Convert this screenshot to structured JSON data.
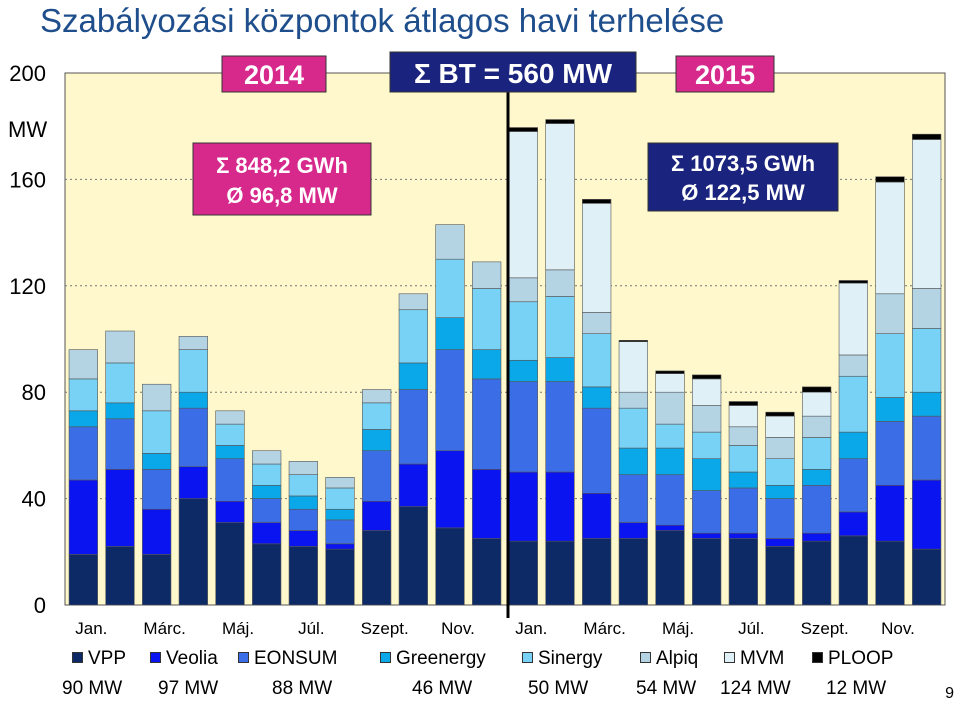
{
  "title": "Szabályozási központok átlagos havi terhelése",
  "page_number": "9",
  "boxes": {
    "year_2014": "2014",
    "bt_total": "Σ BT = 560 MW",
    "year_2015": "2015",
    "sum_2014_line1": "Σ 848,2 GWh",
    "sum_2014_line2": "Ø 96,8 MW",
    "sum_2015_line1": "Σ 1073,5 GWh",
    "sum_2015_line2": "Ø 122,5 MW"
  },
  "colors": {
    "VPP": "#0d2a66",
    "Veolia": "#0a14f0",
    "EONSUM": "#3b6ee6",
    "Greenergy": "#0aa8e8",
    "Sinergy": "#78d2f5",
    "Alpiq": "#b4d4e4",
    "MVM": "#dff1f7",
    "PLOOP": "#000000",
    "plot_bg": "#fff8cc",
    "box_magenta": "#d7288c",
    "box_navy": "#1a237e",
    "text_box_fill": "#ffffff"
  },
  "legend": [
    {
      "name": "VPP",
      "value": "90 MW"
    },
    {
      "name": "Veolia",
      "value": "97 MW"
    },
    {
      "name": "EONSUM",
      "value": "88 MW"
    },
    {
      "name": "Greenergy",
      "value": "46 MW"
    },
    {
      "name": "Sinergy",
      "value": "50 MW"
    },
    {
      "name": "Alpiq",
      "value": "54 MW"
    },
    {
      "name": "MVM",
      "value": "124 MW"
    },
    {
      "name": "PLOOP",
      "value": "12 MW"
    }
  ],
  "chart_data": {
    "type": "bar",
    "stacked": true,
    "title": "Szabályozási központok átlagos havi terhelése",
    "ylabel": "MW",
    "ylim": [
      0,
      200
    ],
    "yticks": [
      0,
      40,
      80,
      120,
      160,
      200
    ],
    "grid": true,
    "x_tick_labels": [
      "Jan.",
      "Márc.",
      "Máj.",
      "Júl.",
      "Szept.",
      "Nov.",
      "Jan.",
      "Márc.",
      "Máj.",
      "Júl.",
      "Szept.",
      "Nov."
    ],
    "categories": [
      "2014-01",
      "2014-02",
      "2014-03",
      "2014-04",
      "2014-05",
      "2014-06",
      "2014-07",
      "2014-08",
      "2014-09",
      "2014-10",
      "2014-11",
      "2014-12",
      "2015-01",
      "2015-02",
      "2015-03",
      "2015-04",
      "2015-05",
      "2015-06",
      "2015-07",
      "2015-08",
      "2015-09",
      "2015-10",
      "2015-11",
      "2015-12"
    ],
    "series": [
      {
        "name": "VPP",
        "values": [
          19,
          22,
          19,
          40,
          31,
          23,
          22,
          21,
          28,
          37,
          29,
          25,
          24,
          24,
          25,
          25,
          28,
          25,
          25,
          22,
          24,
          26,
          24,
          21
        ]
      },
      {
        "name": "Veolia",
        "values": [
          28,
          29,
          17,
          12,
          8,
          8,
          6,
          2,
          11,
          16,
          29,
          26,
          26,
          26,
          17,
          6,
          2,
          2,
          2,
          3,
          3,
          9,
          21,
          26
        ]
      },
      {
        "name": "EONSUM",
        "values": [
          20,
          19,
          15,
          22,
          16,
          9,
          8,
          9,
          19,
          28,
          38,
          34,
          34,
          34,
          32,
          18,
          19,
          16,
          17,
          15,
          18,
          20,
          24,
          24
        ]
      },
      {
        "name": "Greenergy",
        "values": [
          6,
          6,
          6,
          6,
          5,
          5,
          5,
          4,
          8,
          10,
          12,
          11,
          8,
          9,
          8,
          10,
          10,
          12,
          6,
          5,
          6,
          10,
          9,
          9
        ]
      },
      {
        "name": "Sinergy",
        "values": [
          12,
          15,
          16,
          16,
          8,
          8,
          8,
          8,
          10,
          20,
          22,
          23,
          22,
          23,
          20,
          15,
          9,
          10,
          10,
          10,
          12,
          21,
          24,
          24
        ]
      },
      {
        "name": "Alpiq",
        "values": [
          11,
          12,
          10,
          5,
          5,
          5,
          5,
          4,
          5,
          6,
          13,
          10,
          9,
          10,
          8,
          6,
          12,
          10,
          7,
          8,
          8,
          8,
          15,
          15
        ]
      },
      {
        "name": "MVM",
        "values": [
          0,
          0,
          0,
          0,
          0,
          0,
          0,
          0,
          0,
          0,
          0,
          0,
          55,
          55,
          41,
          19,
          7,
          10,
          8,
          8,
          9,
          27,
          42,
          56
        ]
      },
      {
        "name": "PLOOP",
        "values": [
          0,
          0,
          0,
          0,
          0,
          0,
          0,
          0,
          0,
          0,
          0,
          0,
          1.5,
          1.5,
          1.5,
          0.5,
          1,
          1.5,
          1.5,
          1.5,
          2,
          1,
          2,
          2
        ]
      }
    ]
  }
}
